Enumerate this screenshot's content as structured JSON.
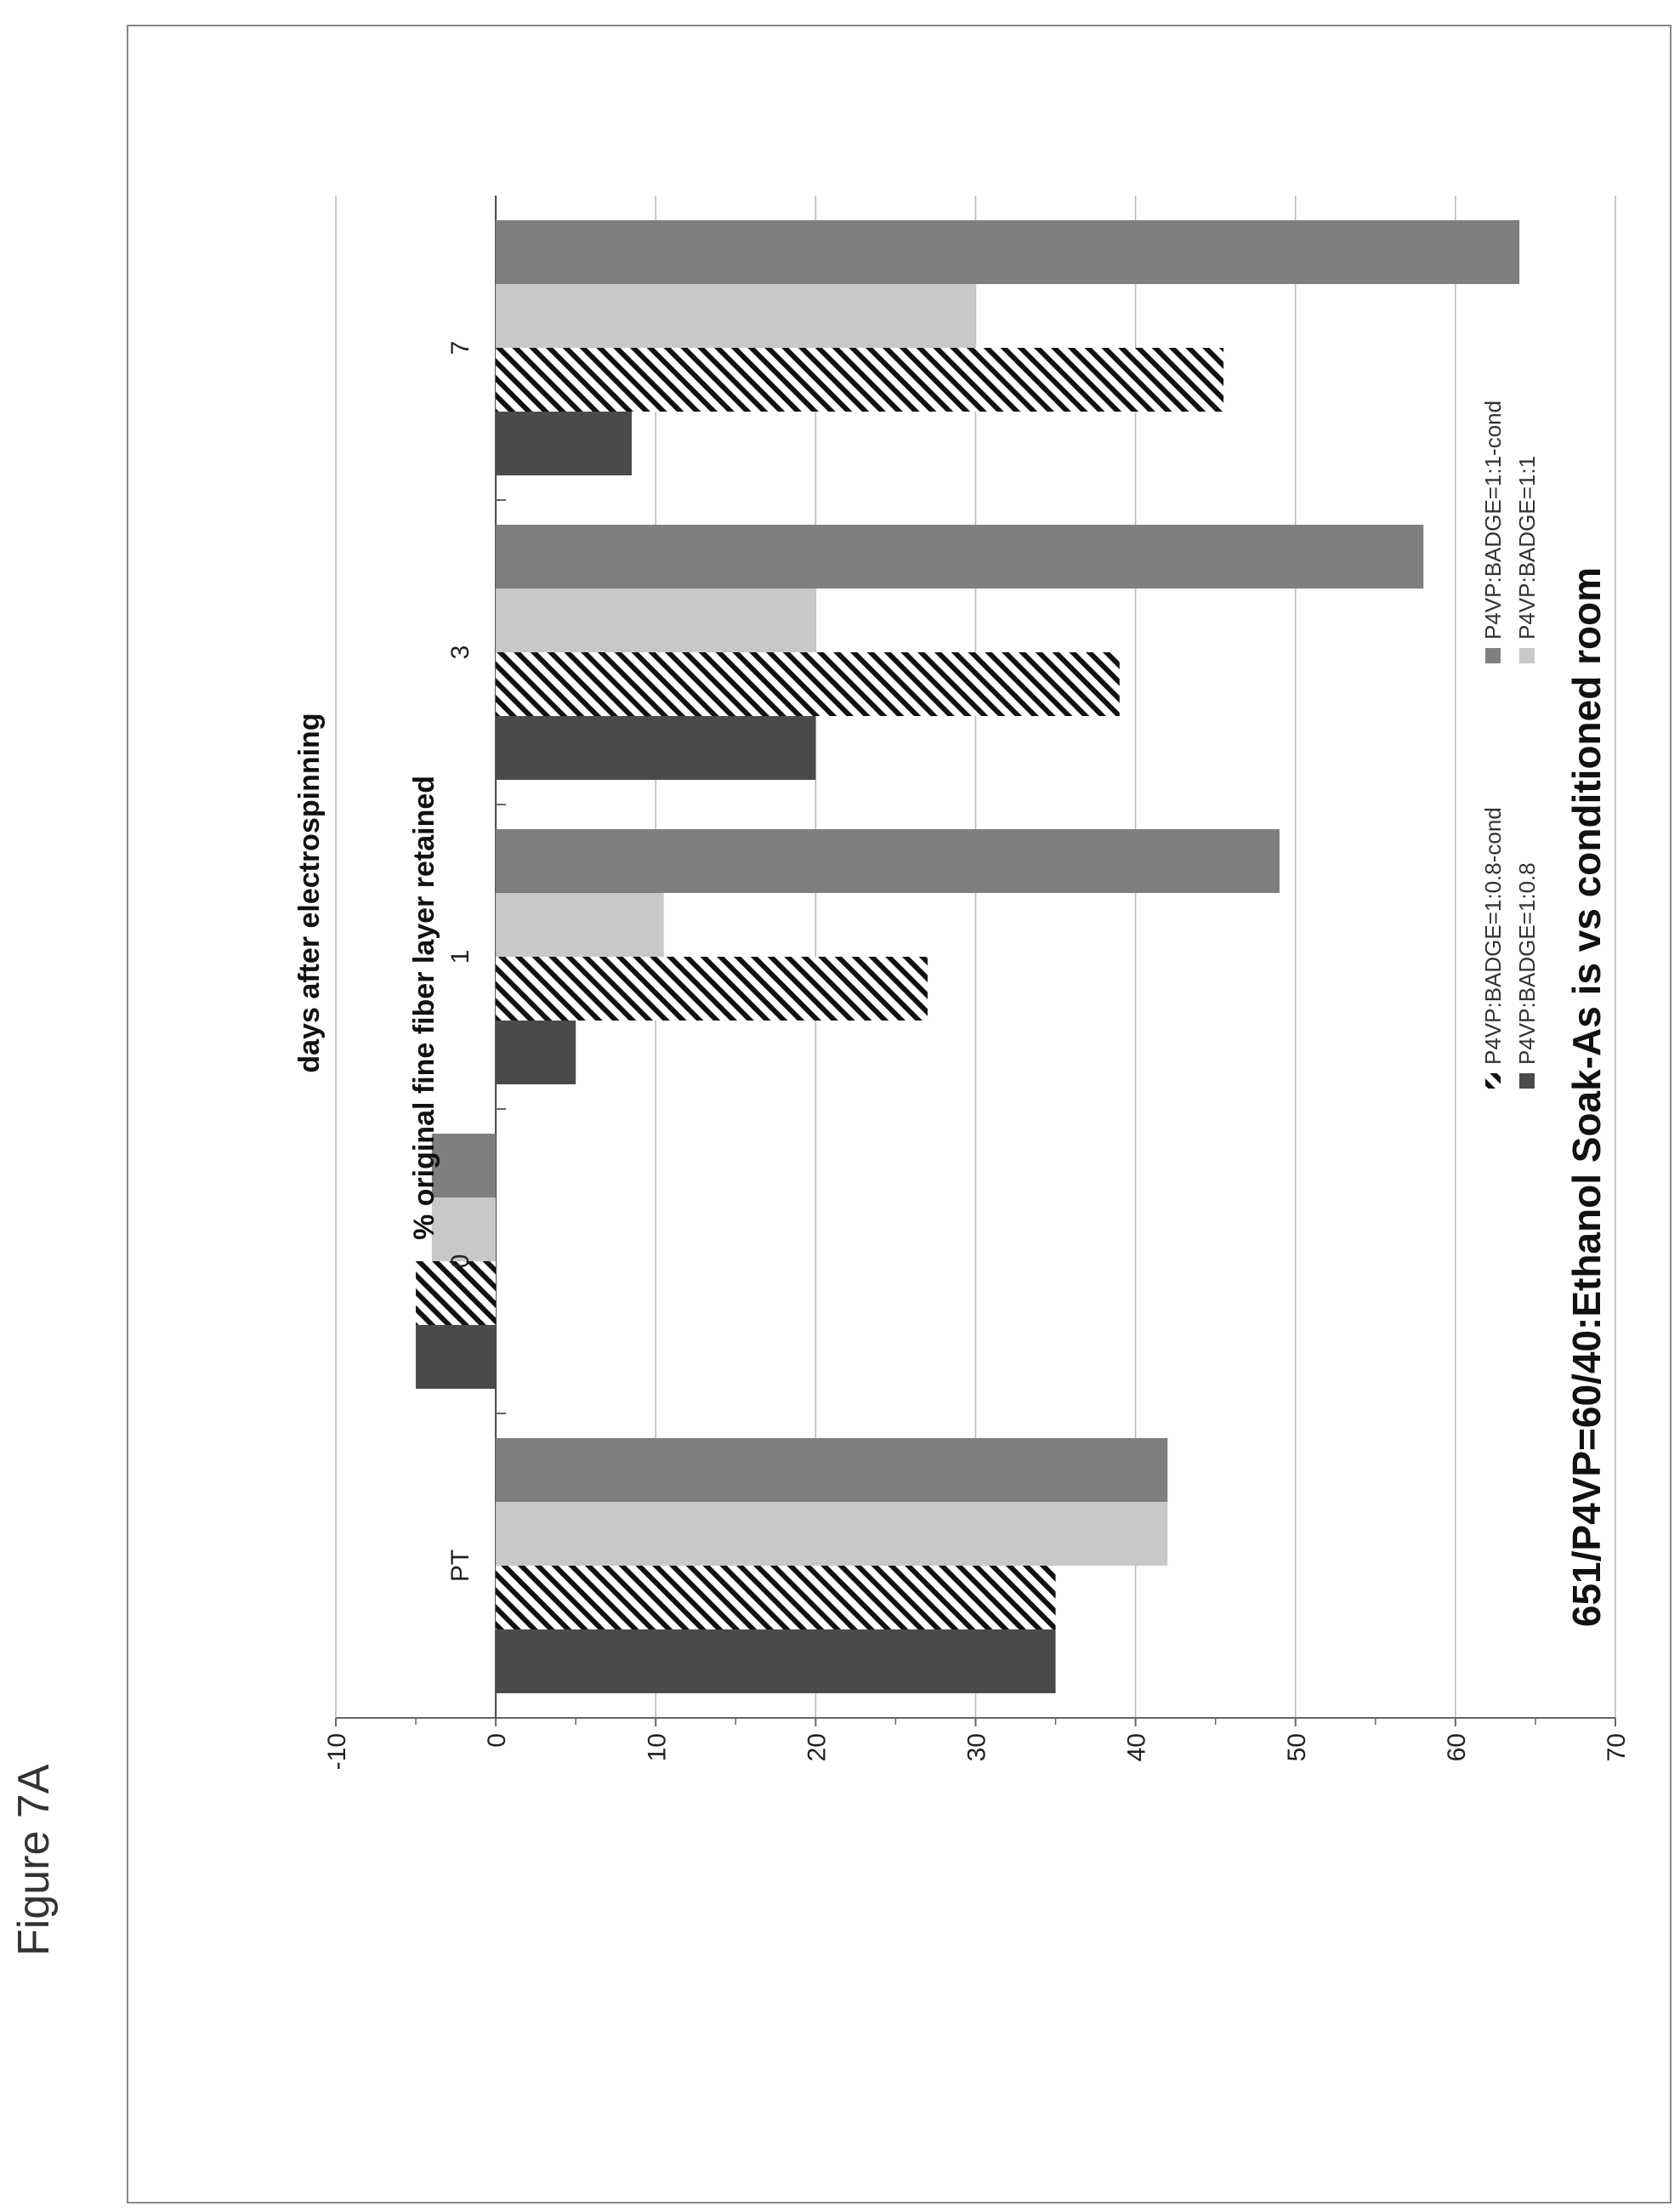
{
  "figure_label": "Figure 7A",
  "chart_data": {
    "type": "bar",
    "title": "651/P4VP=60/40:Ethanol Soak-As is vs conditioned room",
    "xlabel": "days after electrospinning",
    "ylabel": "% original fine fiber layer retained",
    "categories": [
      "PT",
      "0",
      "1",
      "3",
      "7"
    ],
    "ylim": [
      -10,
      70
    ],
    "yticks": [
      "-10",
      "0",
      "10",
      "20",
      "30",
      "40",
      "50",
      "60",
      "70"
    ],
    "grid": true,
    "legend_placement": "top",
    "series": [
      {
        "name": "P4VP:BADGE=1:0.8",
        "color": "#4a4a4a",
        "pattern": "solid",
        "values": [
          35,
          -5,
          5,
          20,
          8.5
        ]
      },
      {
        "name": "P4VP:BADGE=1:0.8-cond",
        "color": "#111111",
        "pattern": "hatch",
        "values": [
          35,
          -5,
          27,
          39,
          45.5
        ]
      },
      {
        "name": "P4VP:BADGE=1:1",
        "color": "#c8c8c8",
        "pattern": "solid",
        "values": [
          42,
          -4,
          10.5,
          20,
          30
        ]
      },
      {
        "name": "P4VP:BADGE=1:1-cond",
        "color": "#7f7f7f",
        "pattern": "solid",
        "values": [
          42,
          -4,
          49,
          58,
          64
        ]
      }
    ]
  }
}
